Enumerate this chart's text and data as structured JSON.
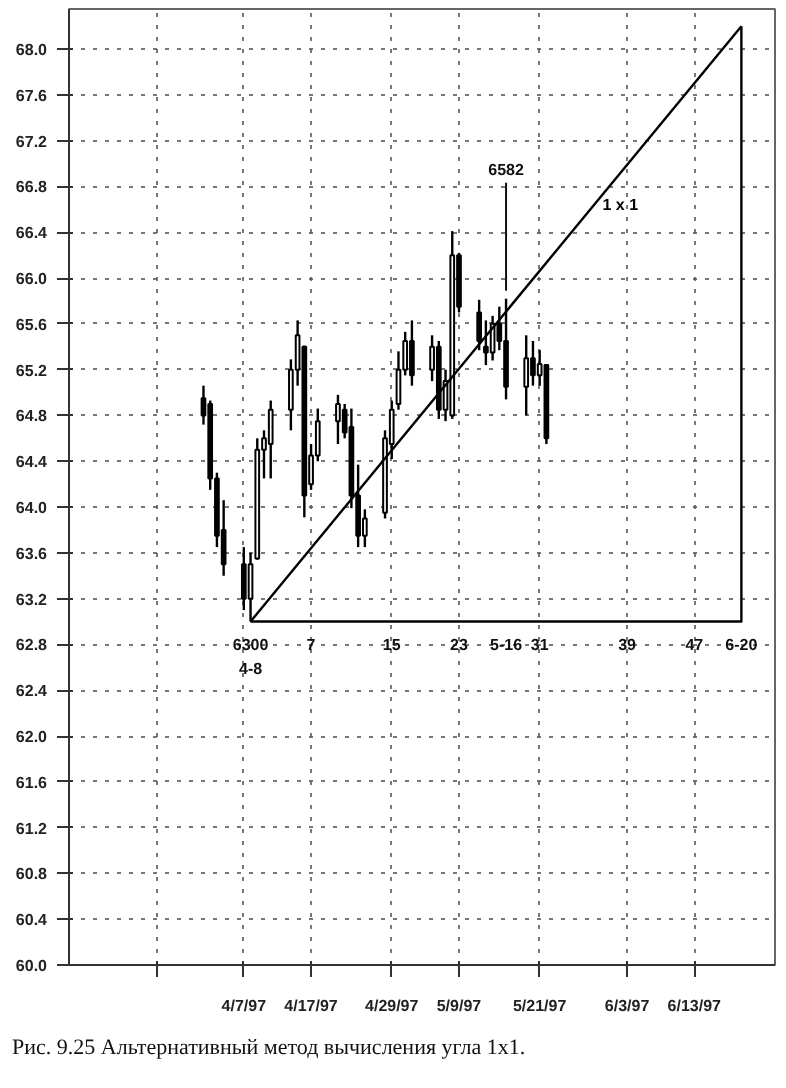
{
  "chart_data": {
    "type": "candlestick",
    "x": [
      "1997-04-01",
      "1997-04-02",
      "1997-04-03",
      "1997-04-04",
      "1997-04-07",
      "1997-04-08",
      "1997-04-09",
      "1997-04-10",
      "1997-04-11",
      "1997-04-14",
      "1997-04-15",
      "1997-04-16",
      "1997-04-17",
      "1997-04-18",
      "1997-04-21",
      "1997-04-22",
      "1997-04-23",
      "1997-04-24",
      "1997-04-25",
      "1997-04-28",
      "1997-04-29",
      "1997-04-30",
      "1997-05-01",
      "1997-05-02",
      "1997-05-05",
      "1997-05-06",
      "1997-05-07",
      "1997-05-08",
      "1997-05-09",
      "1997-05-12",
      "1997-05-13",
      "1997-05-14",
      "1997-05-15",
      "1997-05-16",
      "1997-05-19",
      "1997-05-20",
      "1997-05-21",
      "1997-05-22"
    ],
    "ohlc": [
      [
        64.95,
        65.06,
        64.72,
        64.8
      ],
      [
        64.9,
        64.93,
        64.15,
        64.25
      ],
      [
        64.25,
        64.3,
        63.65,
        63.75
      ],
      [
        63.8,
        64.06,
        63.4,
        63.5
      ],
      [
        63.5,
        63.65,
        63.1,
        63.2
      ],
      [
        63.2,
        63.6,
        63.0,
        63.5
      ],
      [
        63.55,
        64.6,
        63.54,
        64.5
      ],
      [
        64.5,
        64.67,
        64.25,
        64.6
      ],
      [
        64.55,
        64.93,
        64.25,
        64.85
      ],
      [
        64.85,
        65.29,
        64.67,
        65.2
      ],
      [
        65.2,
        65.63,
        65.06,
        65.5
      ],
      [
        65.4,
        65.41,
        63.91,
        64.1
      ],
      [
        64.2,
        64.55,
        64.15,
        64.45
      ],
      [
        64.45,
        64.86,
        64.4,
        64.75
      ],
      [
        64.75,
        64.98,
        64.55,
        64.9
      ],
      [
        64.85,
        64.9,
        64.6,
        64.65
      ],
      [
        64.7,
        64.86,
        63.99,
        64.1
      ],
      [
        64.1,
        64.37,
        63.65,
        63.75
      ],
      [
        63.75,
        63.98,
        63.65,
        63.9
      ],
      [
        63.95,
        64.67,
        63.9,
        64.6
      ],
      [
        64.55,
        64.93,
        64.42,
        64.85
      ],
      [
        64.9,
        65.36,
        64.85,
        65.2
      ],
      [
        65.2,
        65.53,
        65.15,
        65.45
      ],
      [
        65.45,
        65.63,
        65.06,
        65.15
      ],
      [
        65.2,
        65.5,
        65.1,
        65.4
      ],
      [
        65.4,
        65.45,
        64.77,
        64.85
      ],
      [
        64.85,
        65.2,
        64.75,
        65.1
      ],
      [
        64.8,
        66.41,
        64.77,
        66.2
      ],
      [
        66.2,
        66.22,
        65.7,
        65.75
      ],
      [
        65.7,
        65.81,
        65.37,
        65.45
      ],
      [
        65.4,
        65.63,
        65.24,
        65.35
      ],
      [
        65.35,
        65.67,
        65.28,
        65.6
      ],
      [
        65.6,
        65.75,
        65.37,
        65.45
      ],
      [
        65.45,
        65.82,
        64.94,
        65.05
      ],
      [
        65.05,
        65.5,
        64.8,
        65.3
      ],
      [
        65.3,
        65.45,
        65.06,
        65.15
      ],
      [
        65.15,
        65.37,
        65.06,
        65.25
      ],
      [
        65.24,
        65.24,
        64.55,
        64.6
      ]
    ],
    "color": "#000000",
    "series": [
      {
        "type": "line",
        "name": "1 x 1",
        "color": "#000000",
        "x": [
          "1997-04-08",
          "1997-06-20"
        ],
        "values": [
          63.0,
          68.2
        ]
      },
      {
        "type": "line",
        "color": "#000000",
        "x": [
          "1997-04-08",
          "1997-04-17",
          "1997-04-29",
          "1997-05-09",
          "1997-05-16",
          "1997-05-21",
          "1997-06-03",
          "1997-06-13",
          "1997-06-20",
          "1997-06-20"
        ],
        "values": [
          63.0,
          63.0,
          63.0,
          63.0,
          63.0,
          63.0,
          63.0,
          63.0,
          63.0,
          68.2
        ]
      }
    ],
    "xlim": [
      "1997-03-12",
      "1997-06-25"
    ],
    "ylim": [
      60.0,
      68.35
    ],
    "xticks": [
      {
        "value": "1997-03-25",
        "label": null
      },
      {
        "value": "1997-04-07",
        "label": "4/7/97"
      },
      {
        "value": "1997-04-17",
        "label": "4/17/97"
      },
      {
        "value": "1997-04-29",
        "label": "4/29/97"
      },
      {
        "value": "1997-05-09",
        "label": "5/9/97"
      },
      {
        "value": "1997-05-21",
        "label": "5/21/97"
      },
      {
        "value": "1997-06-03",
        "label": "6/3/97"
      },
      {
        "value": "1997-06-13",
        "label": "6/13/97"
      }
    ],
    "yticks": [
      {
        "value": 60,
        "label": "60.0"
      },
      60.4,
      60.8,
      61.2,
      61.6,
      {
        "value": 62,
        "label": "62.0"
      },
      62.4,
      62.8,
      63.2,
      63.6,
      {
        "value": 64,
        "label": "64.0"
      },
      64.4,
      64.8,
      65.2,
      65.6,
      {
        "value": 66,
        "label": "66.0"
      },
      66.4,
      66.8,
      67.2,
      67.6,
      {
        "value": 68,
        "label": "68.0"
      }
    ],
    "grid": true,
    "line_style": "solid",
    "annotations": [
      {
        "text": "6582",
        "x": "1997-05-16",
        "y": 65.82
      },
      {
        "text": "6300",
        "x": "1997-04-08",
        "y": 63.0
      },
      {
        "text": "4-8",
        "x": "1997-04-08",
        "y": 63.0
      },
      {
        "text": "7",
        "x": "1997-04-17",
        "y": 63.0
      },
      {
        "text": "15",
        "x": "1997-04-29",
        "y": 63.0
      },
      {
        "text": "23",
        "x": "1997-05-09",
        "y": 63.0
      },
      {
        "text": "31",
        "x": "1997-05-21",
        "y": 63.0
      },
      {
        "text": "39",
        "x": "1997-06-03",
        "y": 63.0
      },
      {
        "text": "47",
        "x": "1997-06-13",
        "y": 63.0
      },
      {
        "text": "5-16",
        "x": "1997-05-16",
        "y": 63.0
      },
      {
        "text": "6-20",
        "x": "1997-06-20",
        "y": 63.0
      },
      "Рис. 9.25 Альтернативный метод вычисления угла 1x1."
    ]
  }
}
